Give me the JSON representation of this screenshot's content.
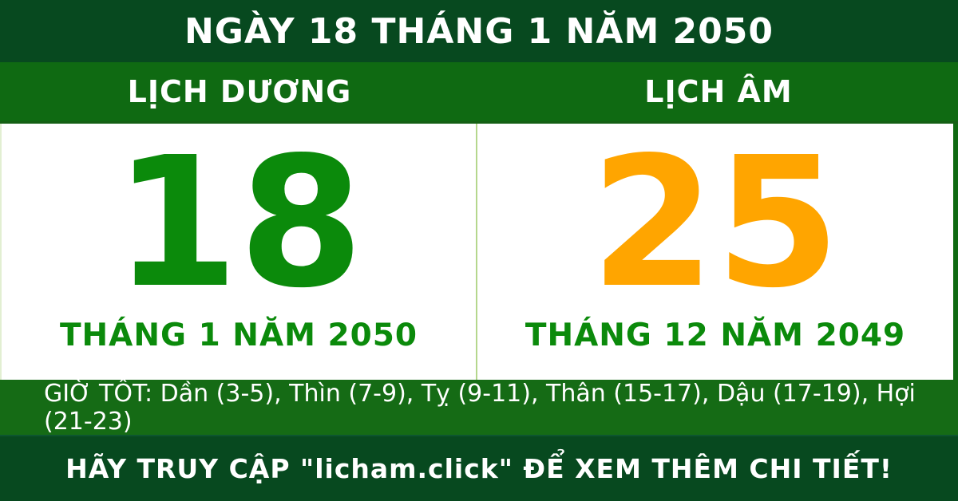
{
  "header": {
    "title": "NGÀY 18 THÁNG 1 NĂM 2050"
  },
  "calendar": {
    "solar": {
      "label": "LỊCH DƯƠNG",
      "day": "18",
      "day_color": "#0b8a0b",
      "month_year": "THÁNG 1 NĂM 2050"
    },
    "lunar": {
      "label": "LỊCH ÂM",
      "day": "25",
      "day_color": "#ffa500",
      "month_year": "THÁNG 12 NĂM 2049"
    }
  },
  "good_hours": {
    "text": "GIỜ TỐT: Dần (3-5), Thìn (7-9), Tỵ (9-11), Thân (15-17), Dậu (17-19), Hợi (21-23)"
  },
  "footer": {
    "text": "HÃY TRUY CẬP \"licham.click\" ĐỂ XEM THÊM CHI TIẾT!"
  },
  "colors": {
    "dark_green": "#07491f",
    "bar_green": "#0f6a12",
    "accent_green": "#0b8a0b",
    "accent_orange": "#ffa500",
    "divider_light_green": "#b5d78d"
  }
}
